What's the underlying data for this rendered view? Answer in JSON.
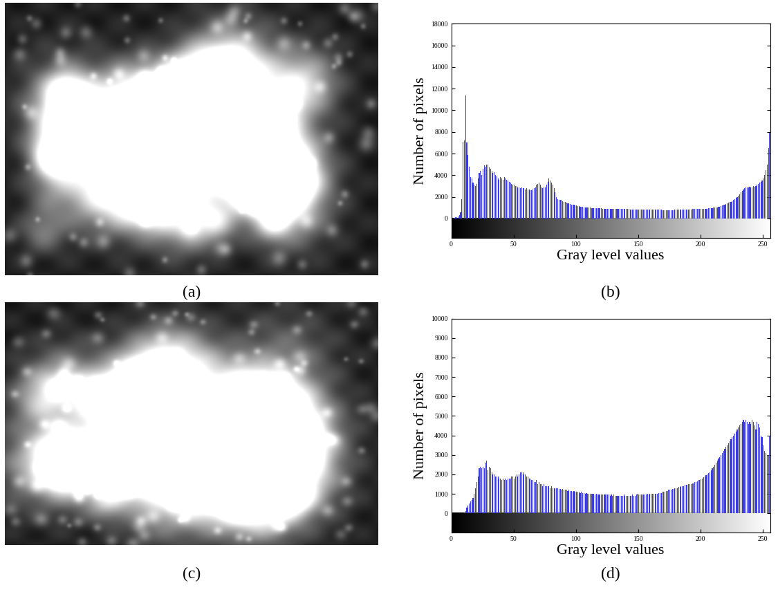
{
  "images": [
    {
      "caption": "(a)"
    },
    {
      "caption": "(c)"
    }
  ],
  "chart_data": [
    {
      "type": "histogram",
      "caption": "(b)",
      "x_label": "Gray level values",
      "y_label": "Number of pixels",
      "color": "#3c3cd8",
      "bins": [
        0,
        1,
        2,
        3,
        4,
        5,
        6,
        7,
        8,
        9,
        10,
        11,
        12,
        13,
        14,
        15,
        16,
        17,
        18,
        19,
        20,
        21,
        22,
        23,
        24,
        25,
        26,
        27,
        28,
        29,
        30,
        31,
        32,
        33,
        34,
        35,
        36,
        37,
        38,
        39,
        40,
        41,
        42,
        43,
        44,
        45,
        46,
        47,
        48,
        49,
        50,
        51,
        52,
        53,
        54,
        55,
        56,
        57,
        58,
        59,
        60,
        61,
        62,
        63,
        64,
        65,
        66,
        67,
        68,
        69,
        70,
        71,
        72,
        73,
        74,
        75,
        76,
        77,
        78,
        79,
        80,
        81,
        82,
        83,
        84,
        85,
        86,
        87,
        88,
        89,
        90,
        91,
        92,
        93,
        94,
        95,
        96,
        97,
        98,
        99,
        100,
        101,
        102,
        103,
        104,
        105,
        106,
        107,
        108,
        109,
        110,
        111,
        112,
        113,
        114,
        115,
        116,
        117,
        118,
        119,
        120,
        121,
        122,
        123,
        124,
        125,
        126,
        127,
        128,
        129,
        130,
        131,
        132,
        133,
        134,
        135,
        136,
        137,
        138,
        139,
        140,
        141,
        142,
        143,
        144,
        145,
        146,
        147,
        148,
        149,
        150,
        151,
        152,
        153,
        154,
        155,
        156,
        157,
        158,
        159,
        160,
        161,
        162,
        163,
        164,
        165,
        166,
        167,
        168,
        169,
        170,
        171,
        172,
        173,
        174,
        175,
        176,
        177,
        178,
        179,
        180,
        181,
        182,
        183,
        184,
        185,
        186,
        187,
        188,
        189,
        190,
        191,
        192,
        193,
        194,
        195,
        196,
        197,
        198,
        199,
        200,
        201,
        202,
        203,
        204,
        205,
        206,
        207,
        208,
        209,
        210,
        211,
        212,
        213,
        214,
        215,
        216,
        217,
        218,
        219,
        220,
        221,
        222,
        223,
        224,
        225,
        226,
        227,
        228,
        229,
        230,
        231,
        232,
        233,
        234,
        235,
        236,
        237,
        238,
        239,
        240,
        241,
        242,
        243,
        244,
        245,
        246,
        247,
        248,
        249,
        250,
        251,
        252,
        253,
        254,
        255,
        256
      ],
      "counts": [
        0,
        0,
        50,
        100,
        150,
        200,
        300,
        600,
        1800,
        7100,
        7200,
        11400,
        7000,
        5900,
        4800,
        3800,
        3700,
        3300,
        3100,
        3000,
        3200,
        3700,
        4200,
        4400,
        4000,
        4600,
        4900,
        4800,
        5000,
        5000,
        4700,
        4600,
        4400,
        4200,
        4300,
        4000,
        3900,
        3700,
        3600,
        3800,
        3700,
        3600,
        3800,
        3700,
        3600,
        3500,
        3400,
        3300,
        3200,
        3100,
        3100,
        3000,
        3000,
        2900,
        2900,
        2800,
        2900,
        2800,
        2800,
        2700,
        2800,
        2700,
        2700,
        2600,
        2600,
        2700,
        2800,
        2900,
        3100,
        3200,
        3300,
        3100,
        2900,
        2800,
        2900,
        2900,
        3100,
        3400,
        3700,
        3500,
        3300,
        3100,
        2800,
        2400,
        2000,
        1800,
        1700,
        1750,
        1700,
        1600,
        1500,
        1500,
        1450,
        1400,
        1400,
        1350,
        1300,
        1300,
        1250,
        1200,
        1200,
        1150,
        1150,
        1100,
        1100,
        1100,
        1050,
        1050,
        1000,
        1000,
        1000,
        1000,
        980,
        960,
        960,
        950,
        950,
        940,
        940,
        930,
        930,
        920,
        920,
        910,
        910,
        900,
        900,
        900,
        900,
        890,
        890,
        880,
        880,
        880,
        880,
        870,
        870,
        870,
        860,
        860,
        860,
        860,
        860,
        850,
        850,
        850,
        850,
        850,
        850,
        850,
        840,
        840,
        840,
        840,
        840,
        830,
        830,
        830,
        830,
        830,
        820,
        820,
        820,
        810,
        810,
        800,
        800,
        800,
        800,
        790,
        790,
        790,
        780,
        780,
        780,
        780,
        780,
        790,
        790,
        800,
        800,
        800,
        810,
        810,
        820,
        820,
        830,
        830,
        840,
        840,
        850,
        850,
        850,
        860,
        860,
        860,
        870,
        870,
        880,
        880,
        890,
        890,
        900,
        900,
        910,
        920,
        930,
        940,
        950,
        970,
        990,
        1000,
        1020,
        1050,
        1080,
        1100,
        1150,
        1200,
        1250,
        1300,
        1350,
        1400,
        1450,
        1500,
        1550,
        1600,
        1700,
        1800,
        1900,
        2000,
        2100,
        2250,
        2400,
        2550,
        2700,
        2800,
        2900,
        2850,
        2900,
        2950,
        2900,
        2900,
        3000,
        2950,
        3000,
        3100,
        3200,
        3300,
        3400,
        3500,
        3700,
        4000,
        4500,
        5000,
        6500,
        7900
      ],
      "xlim": [
        0,
        256
      ],
      "xticks": [
        0,
        50,
        100,
        150,
        200,
        250
      ],
      "ylim": [
        -1800,
        18000
      ],
      "yticks": [
        0,
        2000,
        4000,
        6000,
        8000,
        10000,
        12000,
        14000,
        16000,
        18000
      ]
    },
    {
      "type": "histogram",
      "caption": "(d)",
      "x_label": "Gray level values",
      "y_label": "Number of pixels",
      "color": "#3c3cd8",
      "bins": [
        0,
        1,
        2,
        3,
        4,
        5,
        6,
        7,
        8,
        9,
        10,
        11,
        12,
        13,
        14,
        15,
        16,
        17,
        18,
        19,
        20,
        21,
        22,
        23,
        24,
        25,
        26,
        27,
        28,
        29,
        30,
        31,
        32,
        33,
        34,
        35,
        36,
        37,
        38,
        39,
        40,
        41,
        42,
        43,
        44,
        45,
        46,
        47,
        48,
        49,
        50,
        51,
        52,
        53,
        54,
        55,
        56,
        57,
        58,
        59,
        60,
        61,
        62,
        63,
        64,
        65,
        66,
        67,
        68,
        69,
        70,
        71,
        72,
        73,
        74,
        75,
        76,
        77,
        78,
        79,
        80,
        81,
        82,
        83,
        84,
        85,
        86,
        87,
        88,
        89,
        90,
        91,
        92,
        93,
        94,
        95,
        96,
        97,
        98,
        99,
        100,
        101,
        102,
        103,
        104,
        105,
        106,
        107,
        108,
        109,
        110,
        111,
        112,
        113,
        114,
        115,
        116,
        117,
        118,
        119,
        120,
        121,
        122,
        123,
        124,
        125,
        126,
        127,
        128,
        129,
        130,
        131,
        132,
        133,
        134,
        135,
        136,
        137,
        138,
        139,
        140,
        141,
        142,
        143,
        144,
        145,
        146,
        147,
        148,
        149,
        150,
        151,
        152,
        153,
        154,
        155,
        156,
        157,
        158,
        159,
        160,
        161,
        162,
        163,
        164,
        165,
        166,
        167,
        168,
        169,
        170,
        171,
        172,
        173,
        174,
        175,
        176,
        177,
        178,
        179,
        180,
        181,
        182,
        183,
        184,
        185,
        186,
        187,
        188,
        189,
        190,
        191,
        192,
        193,
        194,
        195,
        196,
        197,
        198,
        199,
        200,
        201,
        202,
        203,
        204,
        205,
        206,
        207,
        208,
        209,
        210,
        211,
        212,
        213,
        214,
        215,
        216,
        217,
        218,
        219,
        220,
        221,
        222,
        223,
        224,
        225,
        226,
        227,
        228,
        229,
        230,
        231,
        232,
        233,
        234,
        235,
        236,
        237,
        238,
        239,
        240,
        241,
        242,
        243,
        244,
        245,
        246,
        247,
        248,
        249,
        250,
        251,
        252,
        253,
        254,
        255,
        256
      ],
      "counts": [
        0,
        0,
        0,
        0,
        0,
        0,
        0,
        0,
        0,
        0,
        50,
        100,
        300,
        400,
        500,
        600,
        700,
        800,
        1000,
        1300,
        1600,
        1900,
        2300,
        2400,
        2300,
        2400,
        2300,
        2600,
        2700,
        2200,
        2400,
        2300,
        2100,
        2000,
        2000,
        1900,
        1900,
        1900,
        1800,
        1800,
        1700,
        1800,
        1700,
        1800,
        1700,
        1800,
        1800,
        1800,
        1900,
        1900,
        1800,
        1900,
        2000,
        1900,
        2000,
        2100,
        2100,
        2000,
        2100,
        2000,
        1900,
        1900,
        1800,
        1800,
        1700,
        1700,
        1600,
        1600,
        1700,
        1500,
        1600,
        1500,
        1500,
        1400,
        1500,
        1400,
        1400,
        1400,
        1400,
        1300,
        1400,
        1300,
        1300,
        1300,
        1300,
        1300,
        1250,
        1250,
        1200,
        1250,
        1200,
        1200,
        1200,
        1150,
        1200,
        1150,
        1150,
        1100,
        1150,
        1100,
        1100,
        1100,
        1100,
        1050,
        1100,
        1050,
        1050,
        1000,
        1050,
        1000,
        1000,
        1000,
        1000,
        1000,
        1000,
        950,
        1000,
        950,
        950,
        950,
        950,
        950,
        950,
        950,
        950,
        950,
        950,
        900,
        950,
        900,
        950,
        900,
        900,
        900,
        900,
        900,
        900,
        900,
        950,
        900,
        900,
        900,
        900,
        900,
        900,
        950,
        900,
        900,
        950,
        1000,
        950,
        950,
        950,
        950,
        950,
        950,
        950,
        1000,
        950,
        1000,
        1000,
        1000,
        1000,
        1000,
        1000,
        1000,
        1050,
        1050,
        1050,
        1100,
        1100,
        1100,
        1150,
        1150,
        1200,
        1200,
        1200,
        1250,
        1250,
        1300,
        1300,
        1300,
        1350,
        1350,
        1400,
        1400,
        1400,
        1450,
        1450,
        1450,
        1500,
        1500,
        1500,
        1550,
        1550,
        1600,
        1600,
        1650,
        1700,
        1700,
        1750,
        1800,
        1850,
        1900,
        1950,
        2000,
        2050,
        2100,
        2200,
        2300,
        2400,
        2500,
        2600,
        2700,
        2800,
        2900,
        3000,
        3100,
        3200,
        3300,
        3400,
        3500,
        3600,
        3700,
        3800,
        3900,
        4000,
        4100,
        4200,
        4300,
        4400,
        4500,
        4600,
        4700,
        4800,
        4700,
        4800,
        4700,
        4600,
        4700,
        4600,
        4800,
        4700,
        4500,
        4300,
        4700,
        4600,
        4400,
        4000,
        3900,
        3500,
        3200,
        3100,
        3000,
        3000,
        4000
      ],
      "xlim": [
        0,
        256
      ],
      "xticks": [
        0,
        50,
        100,
        150,
        200,
        250
      ],
      "ylim": [
        -1000,
        10000
      ],
      "yticks": [
        0,
        1000,
        2000,
        3000,
        4000,
        5000,
        6000,
        7000,
        8000,
        9000,
        10000
      ]
    }
  ]
}
